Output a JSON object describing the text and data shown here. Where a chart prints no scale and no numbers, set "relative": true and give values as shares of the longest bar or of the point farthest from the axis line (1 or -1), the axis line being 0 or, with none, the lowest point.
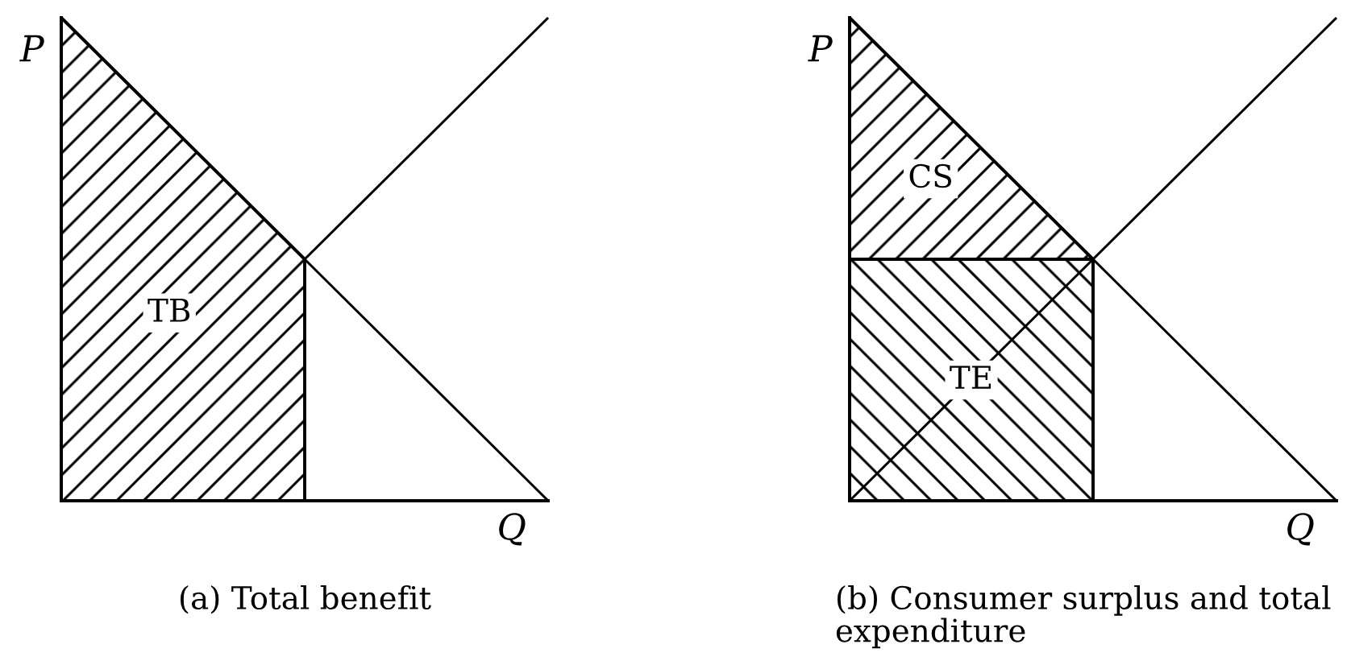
{
  "chart_data": [
    {
      "type": "line",
      "title": "(a) Total benefit",
      "xlabel": "Q",
      "ylabel": "P",
      "relative": true,
      "categories": [
        null,
        null,
        null
      ],
      "series": [
        {
          "type": "area",
          "name": "TB",
          "color": "#000000",
          "values": [
            1,
            0.5,
            null
          ]
        },
        {
          "color": "#000000",
          "values": [
            1,
            0.5,
            0
          ]
        },
        {
          "color": "#000000",
          "values": [
            null,
            0.5,
            1
          ]
        }
      ]
    },
    {
      "type": "line",
      "title": "(b) Consumer surplus and total expenditure",
      "xlabel": "Q",
      "ylabel": "P",
      "relative": true,
      "categories": [
        null,
        null,
        null
      ],
      "series": [
        {
          "type": "area",
          "name": "CS",
          "color": "#000000",
          "values": [
            1,
            0.5,
            null
          ]
        },
        {
          "type": "area",
          "name": "TE",
          "color": "#000000",
          "values": [
            0.5,
            0.5,
            null
          ]
        },
        {
          "color": "#000000",
          "values": [
            1,
            0.5,
            0
          ]
        },
        {
          "color": "#000000",
          "values": [
            0,
            0.5,
            1
          ]
        }
      ]
    }
  ]
}
